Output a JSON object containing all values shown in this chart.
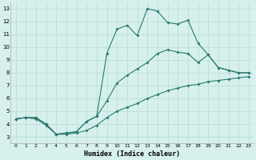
{
  "bg_color": "#d6f0ec",
  "grid_color": "#b8dbd7",
  "line_color": "#2a7a70",
  "xlabel": "Humidex (Indice chaleur)",
  "xlim": [
    -0.5,
    23.5
  ],
  "ylim": [
    2.5,
    13.5
  ],
  "xticks": [
    0,
    1,
    2,
    3,
    4,
    5,
    6,
    7,
    8,
    9,
    10,
    11,
    12,
    13,
    14,
    15,
    16,
    17,
    18,
    19,
    20,
    21,
    22,
    23
  ],
  "yticks": [
    3,
    4,
    5,
    6,
    7,
    8,
    9,
    10,
    11,
    12,
    13
  ],
  "line1_x": [
    0,
    1,
    2,
    3,
    4,
    5,
    6,
    7,
    8,
    9,
    10,
    11,
    12,
    13,
    14,
    15,
    16,
    17,
    18,
    19,
    20,
    21,
    22,
    23
  ],
  "line1_y": [
    4.4,
    4.5,
    4.5,
    4.0,
    3.2,
    3.3,
    3.4,
    4.2,
    4.6,
    9.5,
    11.4,
    11.7,
    10.9,
    13.0,
    12.8,
    11.9,
    11.8,
    12.1,
    10.3,
    9.4,
    8.4,
    8.2,
    8.0,
    8.0
  ],
  "line2_x": [
    0,
    1,
    2,
    3,
    4,
    5,
    6,
    7,
    8,
    9,
    10,
    11,
    12,
    13,
    14,
    15,
    16,
    17,
    18,
    19,
    20,
    21,
    22,
    23
  ],
  "line2_y": [
    4.4,
    4.5,
    4.5,
    4.0,
    3.2,
    3.3,
    3.4,
    4.2,
    4.6,
    5.8,
    7.2,
    7.8,
    8.3,
    8.8,
    9.5,
    9.8,
    9.6,
    9.5,
    8.8,
    9.4,
    8.4,
    8.2,
    8.0,
    8.0
  ],
  "line3_x": [
    0,
    1,
    2,
    3,
    4,
    5,
    6,
    7,
    8,
    9,
    10,
    11,
    12,
    13,
    14,
    15,
    16,
    17,
    18,
    19,
    20,
    21,
    22,
    23
  ],
  "line3_y": [
    4.4,
    4.5,
    4.4,
    3.9,
    3.2,
    3.2,
    3.3,
    3.5,
    3.9,
    4.5,
    5.0,
    5.3,
    5.6,
    6.0,
    6.3,
    6.6,
    6.8,
    7.0,
    7.1,
    7.3,
    7.4,
    7.5,
    7.6,
    7.7
  ]
}
